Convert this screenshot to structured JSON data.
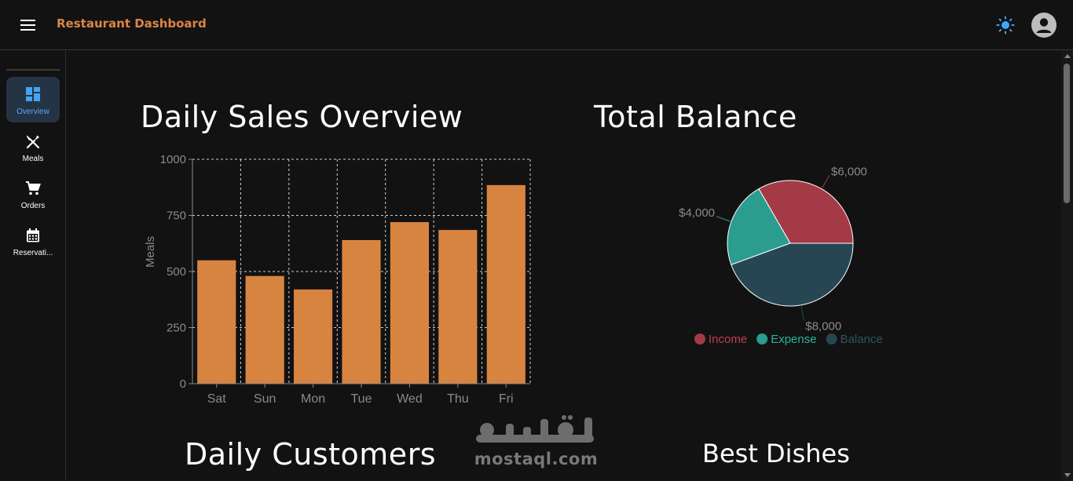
{
  "header": {
    "title": "Restaurant Dashboard"
  },
  "sidebar": {
    "items": [
      {
        "label": "Overview",
        "icon": "dashboard-icon",
        "active": true
      },
      {
        "label": "Meals",
        "icon": "restaurant-icon",
        "active": false
      },
      {
        "label": "Orders",
        "icon": "shopping-cart-icon",
        "active": false
      },
      {
        "label": "Reservati...",
        "icon": "calendar-icon",
        "active": false
      }
    ]
  },
  "main": {
    "daily_sales_title": "Daily Sales Overview",
    "total_balance_title": "Total Balance",
    "daily_customers_title": "Daily Customers",
    "best_dishes_title": "Best Dishes"
  },
  "watermark": {
    "url": "mostaql.com"
  },
  "colors": {
    "accent": "#db8546",
    "active_nav_bg": "#253445",
    "active_nav_text": "#5aa7ff",
    "bar": "#d88441",
    "income": "#a53a47",
    "expense": "#2a9d8f",
    "balance": "#264653"
  },
  "chart_data": [
    {
      "type": "bar",
      "categories": [
        "Sat",
        "Sun",
        "Mon",
        "Tue",
        "Wed",
        "Thu",
        "Fri"
      ],
      "values": [
        550,
        480,
        420,
        640,
        720,
        685,
        885
      ],
      "ylabel": "Meals",
      "ylim": [
        0,
        1000
      ],
      "yticks": [
        0,
        250,
        500,
        750,
        1000
      ],
      "grid": true
    },
    {
      "type": "pie",
      "labels": [
        "Income",
        "Expense",
        "Balance"
      ],
      "values": [
        6000,
        4000,
        8000
      ],
      "value_labels": [
        "$6,000",
        "$4,000",
        "$8,000"
      ],
      "legend": "bottom"
    }
  ]
}
